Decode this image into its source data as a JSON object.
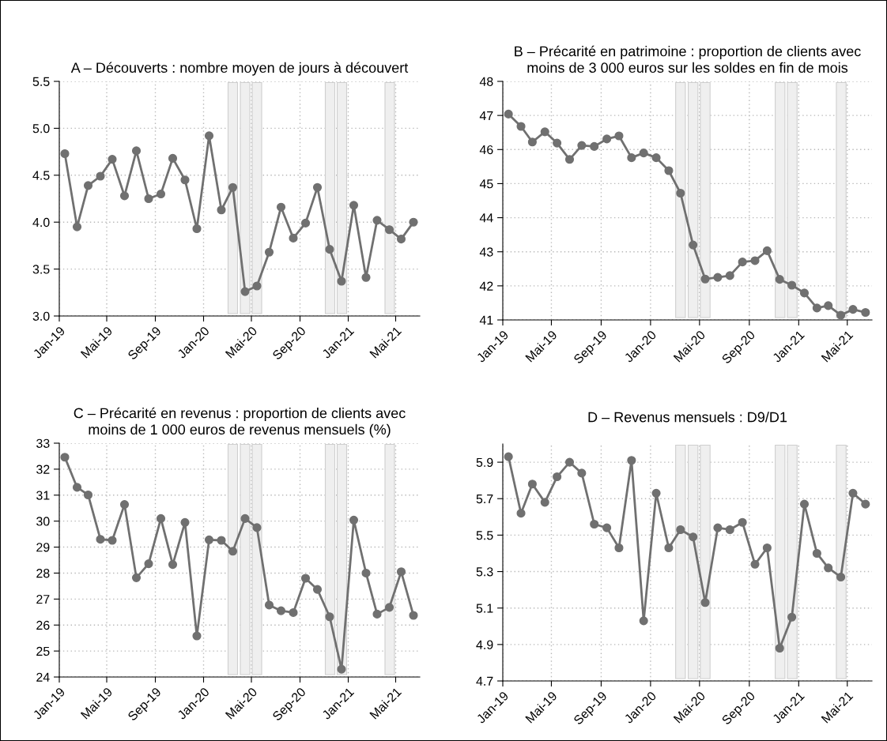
{
  "chart_data": [
    {
      "type": "line",
      "title": "A – Découverts : nombre moyen de jours à découvert",
      "x": [
        "2019-01-15",
        "2019-02-15",
        "2019-03-15",
        "2019-04-15",
        "2019-05-15",
        "2019-06-15",
        "2019-07-15",
        "2019-08-15",
        "2019-09-15",
        "2019-10-15",
        "2019-11-15",
        "2019-12-15",
        "2020-01-15",
        "2020-02-15",
        "2020-03-15",
        "2020-04-15",
        "2020-05-15",
        "2020-06-15",
        "2020-07-15",
        "2020-08-15",
        "2020-09-15",
        "2020-10-15",
        "2020-11-15",
        "2020-12-15",
        "2021-01-15",
        "2021-02-15",
        "2021-03-15",
        "2021-04-15",
        "2021-05-15",
        "2021-06-15"
      ],
      "series": [
        {
          "color": "#707070",
          "values": [
            4.73,
            3.95,
            4.39,
            4.49,
            4.67,
            4.28,
            4.76,
            4.25,
            4.3,
            4.68,
            4.45,
            3.93,
            4.92,
            4.13,
            4.37,
            3.26,
            3.32,
            3.68,
            4.16,
            3.83,
            3.99,
            4.37,
            3.71,
            3.37,
            4.18,
            3.41,
            4.02,
            3.92,
            3.82,
            4.0
          ]
        }
      ],
      "xlim": [
        "2019-01-01",
        "2021-07-01"
      ],
      "xticks": [
        {
          "value": "2019-01-01",
          "label": "Jan-19"
        },
        {
          "value": "2019-05-01",
          "label": "Mai-19"
        },
        {
          "value": "2019-09-01",
          "label": "Sep-19"
        },
        {
          "value": "2020-01-01",
          "label": "Jan-20"
        },
        {
          "value": "2020-05-01",
          "label": "Mai-20"
        },
        {
          "value": "2020-09-01",
          "label": "Sep-20"
        },
        {
          "value": "2021-01-01",
          "label": "Jan-21"
        },
        {
          "value": "2021-05-01",
          "label": "Mai-21"
        }
      ],
      "ylim": [
        3.0,
        5.5
      ],
      "yticks": [
        {
          "value": 3.0,
          "label": "3.0"
        },
        {
          "value": 3.5,
          "label": "3.5"
        },
        {
          "value": 4.0,
          "label": "4.0"
        },
        {
          "value": 4.5,
          "label": "4.5"
        },
        {
          "value": 5.0,
          "label": "5.0"
        },
        {
          "value": 5.5,
          "label": "5.5"
        }
      ],
      "bands": [
        {
          "axis": "x",
          "from": "2020-03-03",
          "to": "2020-03-27",
          "color": "#efefef"
        },
        {
          "axis": "x",
          "from": "2020-04-03",
          "to": "2020-04-27",
          "color": "#efefef"
        },
        {
          "axis": "x",
          "from": "2020-05-03",
          "to": "2020-05-27",
          "color": "#efefef"
        },
        {
          "axis": "x",
          "from": "2020-11-04",
          "to": "2020-11-28",
          "color": "#efefef"
        },
        {
          "axis": "x",
          "from": "2020-12-04",
          "to": "2020-12-28",
          "color": "#efefef"
        },
        {
          "axis": "x",
          "from": "2021-04-04",
          "to": "2021-04-28",
          "color": "#efefef"
        }
      ],
      "grid": true,
      "marker": "circle",
      "line_style": "solid"
    },
    {
      "type": "line",
      "title": "B – Précarité en patrimoine : proportion de clients avec\nmoins de 3 000 euros sur les soldes en fin de mois",
      "x": [
        "2019-01-15",
        "2019-02-15",
        "2019-03-15",
        "2019-04-15",
        "2019-05-15",
        "2019-06-15",
        "2019-07-15",
        "2019-08-15",
        "2019-09-15",
        "2019-10-15",
        "2019-11-15",
        "2019-12-15",
        "2020-01-15",
        "2020-02-15",
        "2020-03-15",
        "2020-04-15",
        "2020-05-15",
        "2020-06-15",
        "2020-07-15",
        "2020-08-15",
        "2020-09-15",
        "2020-10-15",
        "2020-11-15",
        "2020-12-15",
        "2021-01-15",
        "2021-02-15",
        "2021-03-15",
        "2021-04-15",
        "2021-05-15",
        "2021-06-15"
      ],
      "series": [
        {
          "color": "#707070",
          "values": [
            47.04,
            46.68,
            46.22,
            46.52,
            46.19,
            45.71,
            46.12,
            46.09,
            46.31,
            46.4,
            45.76,
            45.9,
            45.76,
            45.38,
            44.72,
            43.2,
            42.2,
            42.25,
            42.3,
            42.7,
            42.74,
            43.03,
            42.19,
            42.02,
            41.79,
            41.35,
            41.42,
            41.14,
            41.31,
            41.22
          ]
        }
      ],
      "xlim": [
        "2019-01-01",
        "2021-07-01"
      ],
      "xticks": [
        {
          "value": "2019-01-01",
          "label": "Jan-19"
        },
        {
          "value": "2019-05-01",
          "label": "Mai-19"
        },
        {
          "value": "2019-09-01",
          "label": "Sep-19"
        },
        {
          "value": "2020-01-01",
          "label": "Jan-20"
        },
        {
          "value": "2020-05-01",
          "label": "Mai-20"
        },
        {
          "value": "2020-09-01",
          "label": "Sep-20"
        },
        {
          "value": "2021-01-01",
          "label": "Jan-21"
        },
        {
          "value": "2021-05-01",
          "label": "Mai-21"
        }
      ],
      "ylim": [
        41,
        48
      ],
      "yticks": [
        41,
        42,
        43,
        44,
        45,
        46,
        47,
        48
      ],
      "bands": [
        {
          "axis": "x",
          "from": "2020-03-03",
          "to": "2020-03-27",
          "color": "#efefef"
        },
        {
          "axis": "x",
          "from": "2020-04-03",
          "to": "2020-04-27",
          "color": "#efefef"
        },
        {
          "axis": "x",
          "from": "2020-05-03",
          "to": "2020-05-27",
          "color": "#efefef"
        },
        {
          "axis": "x",
          "from": "2020-11-04",
          "to": "2020-11-28",
          "color": "#efefef"
        },
        {
          "axis": "x",
          "from": "2020-12-04",
          "to": "2020-12-28",
          "color": "#efefef"
        },
        {
          "axis": "x",
          "from": "2021-04-04",
          "to": "2021-04-28",
          "color": "#efefef"
        }
      ],
      "grid": true,
      "marker": "circle",
      "line_style": "solid"
    },
    {
      "type": "line",
      "title": "C – Précarité en revenus : proportion de clients avec\nmoins de 1 000 euros de revenus mensuels (%)",
      "x": [
        "2019-01-15",
        "2019-02-15",
        "2019-03-15",
        "2019-04-15",
        "2019-05-15",
        "2019-06-15",
        "2019-07-15",
        "2019-08-15",
        "2019-09-15",
        "2019-10-15",
        "2019-11-15",
        "2019-12-15",
        "2020-01-15",
        "2020-02-15",
        "2020-03-15",
        "2020-04-15",
        "2020-05-15",
        "2020-06-15",
        "2020-07-15",
        "2020-08-15",
        "2020-09-15",
        "2020-10-15",
        "2020-11-15",
        "2020-12-15",
        "2021-01-15",
        "2021-02-15",
        "2021-03-15",
        "2021-04-15",
        "2021-05-15",
        "2021-06-15"
      ],
      "series": [
        {
          "color": "#707070",
          "values": [
            32.46,
            31.3,
            31.01,
            29.3,
            29.26,
            30.64,
            27.82,
            28.36,
            30.1,
            28.33,
            29.95,
            25.58,
            29.28,
            29.26,
            28.84,
            30.1,
            29.75,
            26.77,
            26.55,
            26.48,
            27.8,
            27.37,
            26.32,
            24.3,
            30.04,
            28.0,
            26.42,
            26.68,
            28.05,
            26.37
          ]
        }
      ],
      "xlim": [
        "2019-01-01",
        "2021-07-01"
      ],
      "xticks": [
        {
          "value": "2019-01-01",
          "label": "Jan-19"
        },
        {
          "value": "2019-05-01",
          "label": "Mai-19"
        },
        {
          "value": "2019-09-01",
          "label": "Sep-19"
        },
        {
          "value": "2020-01-01",
          "label": "Jan-20"
        },
        {
          "value": "2020-05-01",
          "label": "Mai-20"
        },
        {
          "value": "2020-09-01",
          "label": "Sep-20"
        },
        {
          "value": "2021-01-01",
          "label": "Jan-21"
        },
        {
          "value": "2021-05-01",
          "label": "Mai-21"
        }
      ],
      "ylim": [
        24,
        33
      ],
      "yticks": [
        24,
        25,
        26,
        27,
        28,
        29,
        30,
        31,
        32,
        33
      ],
      "bands": [
        {
          "axis": "x",
          "from": "2020-03-03",
          "to": "2020-03-27",
          "color": "#efefef"
        },
        {
          "axis": "x",
          "from": "2020-04-03",
          "to": "2020-04-27",
          "color": "#efefef"
        },
        {
          "axis": "x",
          "from": "2020-05-03",
          "to": "2020-05-27",
          "color": "#efefef"
        },
        {
          "axis": "x",
          "from": "2020-11-04",
          "to": "2020-11-28",
          "color": "#efefef"
        },
        {
          "axis": "x",
          "from": "2020-12-04",
          "to": "2020-12-28",
          "color": "#efefef"
        },
        {
          "axis": "x",
          "from": "2021-04-04",
          "to": "2021-04-28",
          "color": "#efefef"
        }
      ],
      "grid": true,
      "marker": "circle",
      "line_style": "solid"
    },
    {
      "type": "line",
      "title": "D – Revenus mensuels : D9/D1",
      "x": [
        "2019-01-15",
        "2019-02-15",
        "2019-03-15",
        "2019-04-15",
        "2019-05-15",
        "2019-06-15",
        "2019-07-15",
        "2019-08-15",
        "2019-09-15",
        "2019-10-15",
        "2019-11-15",
        "2019-12-15",
        "2020-01-15",
        "2020-02-15",
        "2020-03-15",
        "2020-04-15",
        "2020-05-15",
        "2020-06-15",
        "2020-07-15",
        "2020-08-15",
        "2020-09-15",
        "2020-10-15",
        "2020-11-15",
        "2020-12-15",
        "2021-01-15",
        "2021-02-15",
        "2021-03-15",
        "2021-04-15",
        "2021-05-15",
        "2021-06-15"
      ],
      "series": [
        {
          "color": "#707070",
          "values": [
            5.93,
            5.62,
            5.78,
            5.68,
            5.82,
            5.9,
            5.84,
            5.56,
            5.54,
            5.43,
            5.91,
            5.03,
            5.73,
            5.43,
            5.53,
            5.49,
            5.13,
            5.54,
            5.53,
            5.57,
            5.34,
            5.43,
            4.88,
            5.05,
            5.67,
            5.4,
            5.32,
            5.27,
            5.73,
            5.67
          ]
        }
      ],
      "xlim": [
        "2019-01-01",
        "2021-07-01"
      ],
      "xticks": [
        {
          "value": "2019-01-01",
          "label": "Jan-19"
        },
        {
          "value": "2019-05-01",
          "label": "Mai-19"
        },
        {
          "value": "2019-09-01",
          "label": "Sep-19"
        },
        {
          "value": "2020-01-01",
          "label": "Jan-20"
        },
        {
          "value": "2020-05-01",
          "label": "Mai-20"
        },
        {
          "value": "2020-09-01",
          "label": "Sep-20"
        },
        {
          "value": "2021-01-01",
          "label": "Jan-21"
        },
        {
          "value": "2021-05-01",
          "label": "Mai-21"
        }
      ],
      "ylim": [
        4.7,
        6.0
      ],
      "yticks": [
        4.7,
        4.9,
        5.1,
        5.3,
        5.5,
        5.7,
        5.9
      ],
      "bands": [
        {
          "axis": "x",
          "from": "2020-03-03",
          "to": "2020-03-27",
          "color": "#efefef"
        },
        {
          "axis": "x",
          "from": "2020-04-03",
          "to": "2020-04-27",
          "color": "#efefef"
        },
        {
          "axis": "x",
          "from": "2020-05-03",
          "to": "2020-05-27",
          "color": "#efefef"
        },
        {
          "axis": "x",
          "from": "2020-11-04",
          "to": "2020-11-28",
          "color": "#efefef"
        },
        {
          "axis": "x",
          "from": "2020-12-04",
          "to": "2020-12-28",
          "color": "#efefef"
        },
        {
          "axis": "x",
          "from": "2021-04-04",
          "to": "2021-04-28",
          "color": "#efefef"
        }
      ],
      "grid": true,
      "marker": "circle",
      "line_style": "solid"
    }
  ]
}
